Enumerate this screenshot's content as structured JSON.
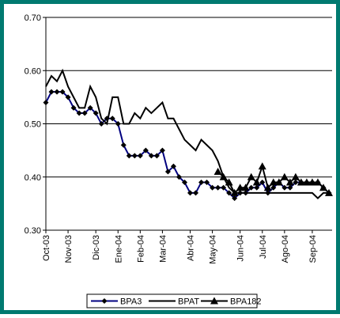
{
  "chart_data": {
    "type": "line",
    "categories": [
      "Oct-03",
      null,
      null,
      null,
      "Nov-03",
      null,
      null,
      null,
      null,
      "Dic-03",
      null,
      null,
      null,
      "Ene-04",
      null,
      null,
      null,
      "Feb-04",
      null,
      null,
      null,
      "Mar-04",
      null,
      null,
      null,
      null,
      "Abr-04",
      null,
      null,
      null,
      "May-04",
      null,
      null,
      null,
      null,
      "Jun-04",
      null,
      null,
      null,
      "Jul-04",
      null,
      null,
      null,
      "Ago-04",
      null,
      null,
      null,
      null,
      "Sep-04",
      null,
      null,
      null
    ],
    "series": [
      {
        "name": "BPA3",
        "color": "#000080",
        "marker": "diamond",
        "values": [
          0.54,
          0.56,
          0.56,
          0.56,
          0.55,
          0.53,
          0.52,
          0.52,
          0.53,
          0.52,
          0.5,
          0.51,
          0.51,
          0.5,
          0.46,
          0.44,
          0.44,
          0.44,
          0.45,
          0.44,
          0.44,
          0.45,
          0.41,
          0.42,
          0.4,
          0.39,
          0.37,
          0.37,
          0.39,
          0.39,
          0.38,
          0.38,
          0.38,
          0.37,
          0.36,
          0.37,
          0.37,
          0.38,
          0.38,
          0.39,
          0.37,
          0.38,
          0.39,
          0.38,
          0.38,
          0.39,
          0.39,
          0.39,
          0.39,
          0.39,
          0.38,
          0.37
        ]
      },
      {
        "name": "BPAT",
        "color": "#000000",
        "marker": "none",
        "values": [
          0.57,
          0.59,
          0.58,
          0.6,
          0.57,
          0.55,
          0.53,
          0.53,
          0.57,
          0.55,
          0.51,
          0.5,
          0.55,
          0.55,
          0.5,
          0.5,
          0.52,
          0.51,
          0.53,
          0.52,
          0.53,
          0.54,
          0.51,
          0.51,
          0.49,
          0.47,
          0.46,
          0.45,
          0.47,
          0.46,
          0.45,
          0.43,
          0.4,
          0.38,
          0.37,
          0.37,
          0.37,
          0.37,
          0.37,
          0.37,
          0.37,
          0.37,
          0.37,
          0.37,
          0.37,
          0.37,
          0.37,
          0.37,
          0.37,
          0.36,
          0.37,
          0.37
        ]
      },
      {
        "name": "BPA182",
        "color": "#000000",
        "marker": "triangle",
        "values": [
          null,
          null,
          null,
          null,
          null,
          null,
          null,
          null,
          null,
          null,
          null,
          null,
          null,
          null,
          null,
          null,
          null,
          null,
          null,
          null,
          null,
          null,
          null,
          null,
          null,
          null,
          null,
          null,
          null,
          null,
          null,
          0.41,
          0.4,
          0.39,
          0.37,
          0.38,
          0.38,
          0.4,
          0.39,
          0.42,
          0.38,
          0.39,
          0.39,
          0.4,
          0.39,
          0.4,
          0.39,
          0.39,
          0.39,
          0.39,
          0.38,
          0.37
        ]
      }
    ],
    "ylim": [
      0.3,
      0.7
    ],
    "yticks": [
      {
        "value": 0.3,
        "label": "0.30"
      },
      {
        "value": 0.4,
        "label": "0.40"
      },
      {
        "value": 0.5,
        "label": "0.50"
      },
      {
        "value": 0.6,
        "label": "0.60"
      },
      {
        "value": 0.7,
        "label": "0.70"
      }
    ],
    "grid": true,
    "legend": "bottom"
  }
}
